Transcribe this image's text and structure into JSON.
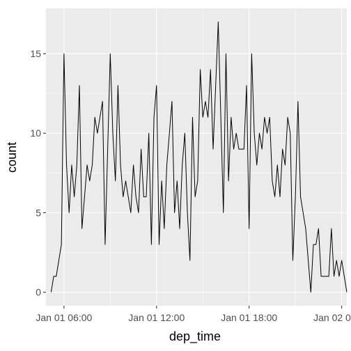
{
  "chart_data": {
    "type": "line",
    "xlabel": "dep_time",
    "ylabel": "count",
    "x_unit": "10-minute bins",
    "x_start": "2013-01-01 05:10",
    "x_step_minutes": 10,
    "xlim": [
      "2013-01-01 04:50",
      "2013-01-02 00:20"
    ],
    "ylim": [
      -0.85,
      17.85
    ],
    "x_ticks": [
      {
        "value": "2013-01-01 06:00",
        "label": "Jan 01 06:00"
      },
      {
        "value": "2013-01-01 12:00",
        "label": "Jan 01 12:00"
      },
      {
        "value": "2013-01-01 18:00",
        "label": "Jan 01 18:00"
      },
      {
        "value": "2013-01-02 00:00",
        "label": "Jan 02 00:00"
      }
    ],
    "y_ticks": [
      0,
      5,
      10,
      15
    ],
    "grid": true,
    "series": [
      {
        "color": "#000000",
        "values": [
          0,
          1,
          1,
          2,
          3,
          15,
          8,
          5,
          8,
          6,
          8,
          13,
          4,
          6,
          8,
          7,
          8,
          11,
          10,
          11,
          12,
          3,
          9,
          15,
          10,
          7,
          13,
          8,
          6,
          7,
          6,
          5,
          8,
          6,
          5,
          9,
          6,
          6,
          10,
          3,
          11,
          13,
          3,
          7,
          4,
          8,
          10,
          12,
          5,
          7,
          4,
          8,
          10,
          5,
          2,
          11,
          6,
          7,
          14,
          11,
          12,
          11,
          14,
          9,
          13,
          17,
          11,
          5,
          15,
          7,
          11,
          9,
          10,
          9,
          9,
          9,
          13,
          4,
          15,
          10,
          8,
          10,
          9,
          11,
          10,
          11,
          7,
          6,
          8,
          6,
          9,
          8,
          11,
          10,
          2,
          6,
          12,
          6,
          5,
          4,
          2,
          0,
          3,
          3,
          4,
          1,
          1,
          1,
          1,
          4,
          1,
          2,
          1,
          2,
          1,
          0
        ]
      }
    ]
  }
}
